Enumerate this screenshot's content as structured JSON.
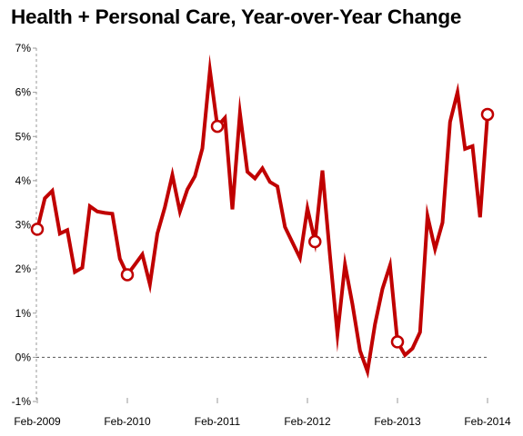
{
  "chart_data": {
    "type": "line",
    "title": "Health + Personal Care, Year-over-Year Change",
    "xlabel": "",
    "ylabel": "",
    "x_tick_labels": [
      "Feb-2009",
      "Feb-2010",
      "Feb-2011",
      "Feb-2012",
      "Feb-2013",
      "Feb-2014"
    ],
    "x_tick_months": [
      0,
      12,
      24,
      36,
      48,
      60
    ],
    "y_ticks": [
      -1,
      0,
      1,
      2,
      3,
      4,
      5,
      6,
      7
    ],
    "y_tick_labels": [
      "-1%",
      "0%",
      "1%",
      "2%",
      "3%",
      "4%",
      "5%",
      "6%",
      "7%"
    ],
    "ylim": [
      -1,
      7
    ],
    "zero_line": "dashed",
    "grid": false,
    "line_color": "#c00000",
    "series": [
      {
        "values": [
          2.9,
          3.6,
          3.77,
          2.8,
          2.88,
          1.93,
          2.03,
          3.42,
          3.3,
          3.27,
          3.25,
          2.23,
          1.87,
          2.1,
          2.33,
          1.65,
          2.8,
          3.4,
          4.13,
          3.3,
          3.8,
          4.1,
          4.73,
          6.5,
          5.23,
          5.42,
          3.35,
          5.53,
          4.2,
          4.05,
          4.28,
          3.97,
          3.87,
          2.95,
          2.6,
          2.25,
          3.37,
          2.62,
          4.23,
          2.3,
          0.52,
          2.1,
          1.2,
          0.15,
          -0.32,
          0.75,
          1.55,
          2.08,
          0.35,
          0.05,
          0.2,
          0.57,
          3.2,
          2.45,
          3.05,
          5.33,
          6.0,
          4.72,
          4.78,
          3.17,
          5.5
        ],
        "circled_points": [
          0,
          12,
          24,
          37,
          48,
          60
        ]
      }
    ]
  }
}
